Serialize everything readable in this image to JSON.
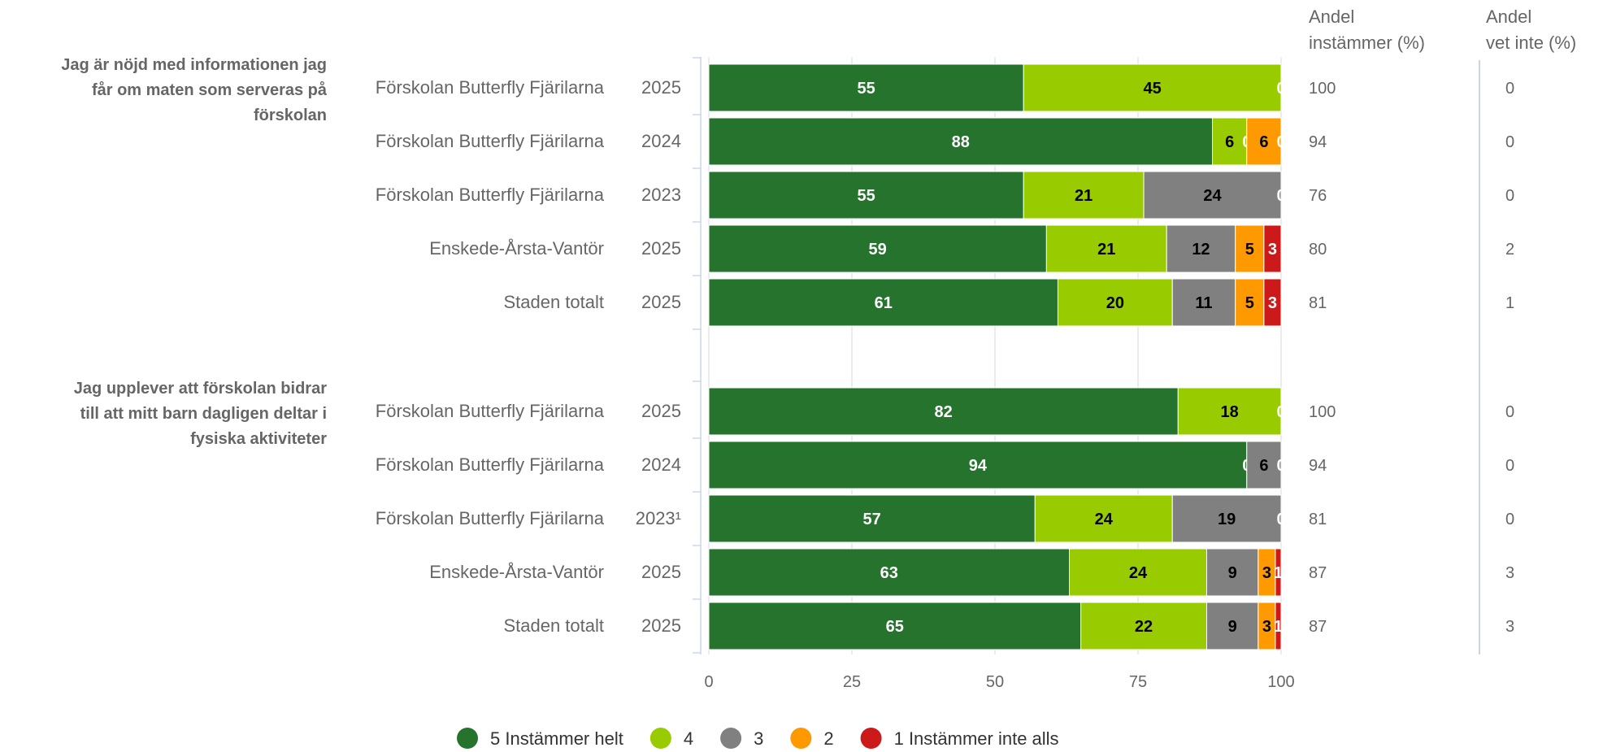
{
  "chart_data": {
    "type": "bar",
    "orientation": "horizontal",
    "stacked": true,
    "xlim": [
      0,
      100
    ],
    "x_ticks": [
      "0",
      "25",
      "50",
      "75",
      "100"
    ],
    "series": [
      {
        "name": "5 Instämmer helt",
        "color": "#26732e",
        "label_color": "#ffffff"
      },
      {
        "name": "4",
        "color": "#99cc00",
        "label_color": "#000000"
      },
      {
        "name": "3",
        "color": "#808080",
        "label_color": "#000000"
      },
      {
        "name": "2",
        "color": "#ff9900",
        "label_color": "#000000"
      },
      {
        "name": "1 Instämmer inte alls",
        "color": "#cc1a1a",
        "label_color": "#ffffff"
      }
    ],
    "column_headers": [
      {
        "line1": "Andel",
        "line2": "instämmer (%)"
      },
      {
        "line1": "Andel",
        "line2": "vet inte (%)"
      }
    ],
    "legend_placement": "bottom",
    "groups": [
      {
        "question_lines": [
          "Jag är nöjd med informationen jag",
          "får om maten som serveras på",
          "förskolan"
        ],
        "rows": [
          {
            "unit": "Förskolan Butterfly Fjärilarna",
            "year": "2025",
            "values": [
              55,
              45,
              0,
              0,
              0
            ],
            "labels": [
              "55",
              "45",
              "0",
              "",
              ""
            ],
            "instammer": "100",
            "vet_inte": "0"
          },
          {
            "unit": "Förskolan Butterfly Fjärilarna",
            "year": "2024",
            "values": [
              88,
              6,
              0,
              6,
              0
            ],
            "labels": [
              "88",
              "6",
              "0",
              "6",
              "0"
            ],
            "instammer": "94",
            "vet_inte": "0"
          },
          {
            "unit": "Förskolan Butterfly Fjärilarna",
            "year": "2023",
            "values": [
              55,
              21,
              24,
              0,
              0
            ],
            "labels": [
              "55",
              "21",
              "24",
              "0",
              ""
            ],
            "instammer": "76",
            "vet_inte": "0"
          },
          {
            "unit": "Enskede-Årsta-Vantör",
            "year": "2025",
            "values": [
              59,
              21,
              12,
              5,
              3
            ],
            "labels": [
              "59",
              "21",
              "12",
              "5",
              "3"
            ],
            "instammer": "80",
            "vet_inte": "2"
          },
          {
            "unit": "Staden totalt",
            "year": "2025",
            "values": [
              61,
              20,
              11,
              5,
              3
            ],
            "labels": [
              "61",
              "20",
              "11",
              "5",
              "3"
            ],
            "instammer": "81",
            "vet_inte": "1"
          }
        ]
      },
      {
        "question_lines": [
          "Jag upplever att förskolan bidrar",
          "till att mitt barn dagligen deltar i",
          "fysiska aktiviteter"
        ],
        "rows": [
          {
            "unit": "Förskolan Butterfly Fjärilarna",
            "year": "2025",
            "values": [
              82,
              18,
              0,
              0,
              0
            ],
            "labels": [
              "82",
              "18",
              "0",
              "",
              ""
            ],
            "instammer": "100",
            "vet_inte": "0"
          },
          {
            "unit": "Förskolan Butterfly Fjärilarna",
            "year": "2024",
            "values": [
              94,
              0,
              6,
              0,
              0
            ],
            "labels": [
              "94",
              "0",
              "6",
              "0",
              ""
            ],
            "instammer": "94",
            "vet_inte": "0"
          },
          {
            "unit": "Förskolan Butterfly Fjärilarna",
            "year": "2023¹",
            "values": [
              57,
              24,
              19,
              0,
              0
            ],
            "labels": [
              "57",
              "24",
              "19",
              "0",
              ""
            ],
            "instammer": "81",
            "vet_inte": "0"
          },
          {
            "unit": "Enskede-Årsta-Vantör",
            "year": "2025",
            "values": [
              63,
              24,
              9,
              3,
              1
            ],
            "labels": [
              "63",
              "24",
              "9",
              "3",
              "1"
            ],
            "instammer": "87",
            "vet_inte": "3"
          },
          {
            "unit": "Staden totalt",
            "year": "2025",
            "values": [
              65,
              22,
              9,
              3,
              1
            ],
            "labels": [
              "65",
              "22",
              "9",
              "3",
              "1"
            ],
            "instammer": "87",
            "vet_inte": "3"
          }
        ]
      }
    ]
  }
}
